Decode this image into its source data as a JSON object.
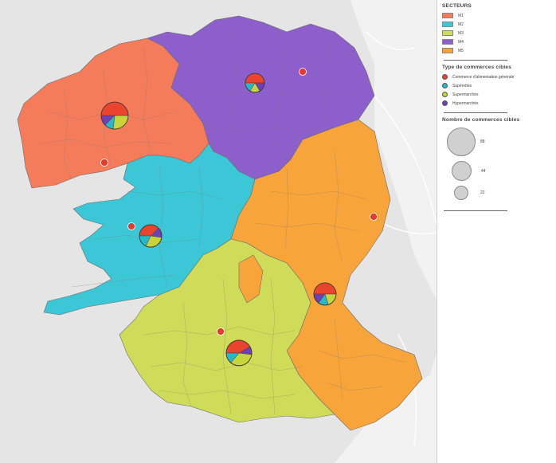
{
  "map": {
    "background_color": "#e5e5e5",
    "land_color": "#f2f2f2",
    "sectors": [
      {
        "code": "M1",
        "color": "#f47c5a"
      },
      {
        "code": "M2",
        "color": "#3cc7d6"
      },
      {
        "code": "M3",
        "color": "#cfdc5a"
      },
      {
        "code": "M4",
        "color": "#8d5fcb"
      },
      {
        "code": "M5",
        "color": "#f7a43a"
      }
    ],
    "red_points": [
      {
        "name": "north-east"
      },
      {
        "name": "west"
      },
      {
        "name": "center-west"
      },
      {
        "name": "east"
      },
      {
        "name": "south"
      }
    ],
    "pie_markers": [
      {
        "name": "west",
        "size": "large"
      },
      {
        "name": "north",
        "size": "medium"
      },
      {
        "name": "center-west",
        "size": "medium"
      },
      {
        "name": "east",
        "size": "medium"
      },
      {
        "name": "south",
        "size": "large"
      }
    ]
  },
  "legend": {
    "sectors_title": "SECTEURS",
    "sectors": [
      {
        "label": "M1",
        "color": "#f47c5a"
      },
      {
        "label": "M2",
        "color": "#3cc7d6"
      },
      {
        "label": "M3",
        "color": "#cfdc5a"
      },
      {
        "label": "M4",
        "color": "#8d5fcb"
      },
      {
        "label": "M5",
        "color": "#f7a43a"
      }
    ],
    "types_title": "Type de commerces cibles",
    "types": [
      {
        "label": "Commerce d'alimentation générale",
        "color": "#e8442e"
      },
      {
        "label": "Supérettes",
        "color": "#28b8c8"
      },
      {
        "label": "Supermarchés",
        "color": "#c8d43c"
      },
      {
        "label": "Hypermarchés",
        "color": "#6f3fb6"
      }
    ],
    "sizes_title": "Nombre de commerces cibles",
    "sizes": [
      {
        "label": "88",
        "value": 88
      },
      {
        "label": "44",
        "value": 44
      },
      {
        "label": "22",
        "value": 22
      }
    ]
  }
}
